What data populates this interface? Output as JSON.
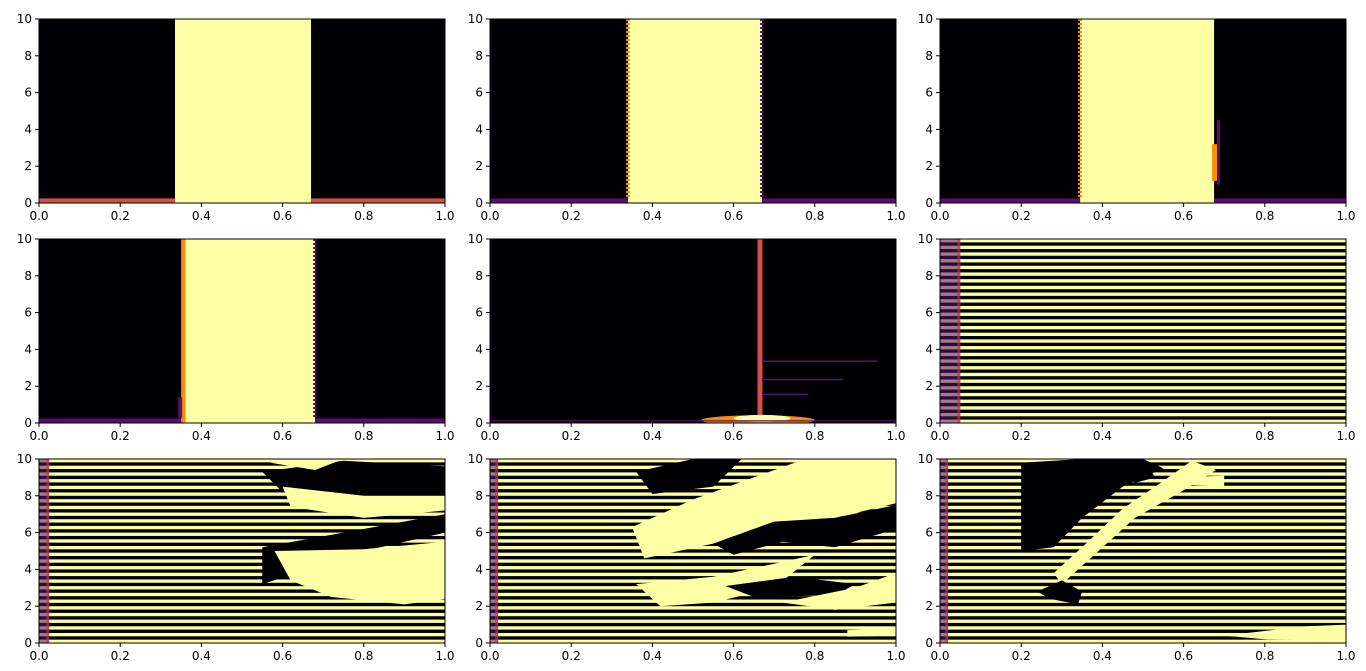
{
  "colors": {
    "background": "#000004",
    "bright": "#fcffa4",
    "orange": "#f98e09",
    "red": "#bc3754",
    "salmon": "#d4504a",
    "purple": "#57106e",
    "dark_purple": "#2a0a4a"
  },
  "chart_data": [
    {
      "type": "heatmap",
      "colormap": "inferno",
      "pattern": "band",
      "band_x": [
        0.335,
        0.67
      ],
      "edge_left": "none",
      "edge_right": "none",
      "bottom_stripe": "salmon",
      "xlim": [
        0,
        1
      ],
      "ylim": [
        0,
        10
      ],
      "xticks": [
        "0.0",
        "0.2",
        "0.4",
        "0.6",
        "0.8",
        "1.0"
      ],
      "yticks": [
        "0",
        "2",
        "4",
        "6",
        "8",
        "10"
      ]
    },
    {
      "type": "heatmap",
      "colormap": "inferno",
      "pattern": "band",
      "band_x": [
        0.34,
        0.67
      ],
      "edge_left": "orange-dash",
      "edge_right": "purple-dash",
      "bottom_stripe": "purple",
      "xlim": [
        0,
        1
      ],
      "ylim": [
        0,
        10
      ],
      "xticks": [
        "0.0",
        "0.2",
        "0.4",
        "0.6",
        "0.8",
        "1.0"
      ],
      "yticks": [
        "0",
        "2",
        "4",
        "6",
        "8",
        "10"
      ]
    },
    {
      "type": "heatmap",
      "colormap": "inferno",
      "pattern": "band",
      "band_x": [
        0.345,
        0.675
      ],
      "edge_left": "orange-dash",
      "edge_right": "orange-glow",
      "bottom_stripe": "purple",
      "xlim": [
        0,
        1
      ],
      "ylim": [
        0,
        10
      ],
      "xticks": [
        "0.0",
        "0.2",
        "0.4",
        "0.6",
        "0.8",
        "1.0"
      ],
      "yticks": [
        "0",
        "2",
        "4",
        "6",
        "8",
        "10"
      ]
    },
    {
      "type": "heatmap",
      "colormap": "inferno",
      "pattern": "band",
      "band_x": [
        0.36,
        0.68
      ],
      "edge_left": "orange-solid",
      "edge_right": "purple-dash",
      "bottom_stripe": "purple",
      "xlim": [
        0,
        1
      ],
      "ylim": [
        0,
        10
      ],
      "xticks": [
        "0.0",
        "0.2",
        "0.4",
        "0.6",
        "0.8",
        "1.0"
      ],
      "yticks": [
        "0",
        "2",
        "4",
        "6",
        "8",
        "10"
      ]
    },
    {
      "type": "heatmap",
      "colormap": "inferno",
      "pattern": "spike",
      "spike_x": 0.665,
      "blob_x": [
        0.52,
        0.8
      ],
      "streak_y": [
        3.4,
        2.4,
        1.6
      ],
      "xlim": [
        0,
        1
      ],
      "ylim": [
        0,
        10
      ],
      "xticks": [
        "0.0",
        "0.2",
        "0.4",
        "0.6",
        "0.8",
        "1.0"
      ],
      "yticks": [
        "0",
        "2",
        "4",
        "6",
        "8",
        "10"
      ]
    },
    {
      "type": "heatmap",
      "colormap": "inferno",
      "pattern": "stripes",
      "left_edge_x": 0.05,
      "stripe_count": 55,
      "xlim": [
        0,
        1
      ],
      "ylim": [
        0,
        10
      ],
      "xticks": [
        "0.0",
        "0.2",
        "0.4",
        "0.6",
        "0.8",
        "1.0"
      ],
      "yticks": [
        "0",
        "2",
        "4",
        "6",
        "8",
        "10"
      ]
    },
    {
      "type": "heatmap",
      "colormap": "inferno",
      "pattern": "stripes-blobs",
      "left_edge_x": 0.025,
      "stripe_count": 55,
      "blobs": [
        {
          "color": "black",
          "pts": [
            [
              0.55,
              9.3
            ],
            [
              0.75,
              9.9
            ],
            [
              1.0,
              9.6
            ],
            [
              1.0,
              7.6
            ],
            [
              0.8,
              7.2
            ],
            [
              0.6,
              8.2
            ]
          ]
        },
        {
          "color": "black",
          "pts": [
            [
              0.55,
              5.2
            ],
            [
              0.75,
              6.0
            ],
            [
              1.0,
              7.0
            ],
            [
              1.0,
              6.0
            ],
            [
              0.8,
              5.0
            ],
            [
              0.55,
              3.2
            ]
          ]
        },
        {
          "color": "bright",
          "pts": [
            [
              0.58,
              5.0
            ],
            [
              0.8,
              5.1
            ],
            [
              1.0,
              5.5
            ],
            [
              1.0,
              2.4
            ],
            [
              0.9,
              2.1
            ],
            [
              0.72,
              2.5
            ],
            [
              0.62,
              3.4
            ]
          ]
        },
        {
          "color": "bright",
          "pts": [
            [
              0.6,
              8.5
            ],
            [
              0.8,
              8.0
            ],
            [
              1.0,
              8.0
            ],
            [
              1.0,
              7.2
            ],
            [
              0.8,
              6.8
            ],
            [
              0.62,
              7.4
            ]
          ]
        },
        {
          "color": "bright",
          "pts": [
            [
              0.57,
              9.8
            ],
            [
              0.65,
              10.0
            ],
            [
              0.75,
              10.0
            ],
            [
              0.68,
              9.4
            ]
          ]
        }
      ],
      "xlim": [
        0,
        1
      ],
      "ylim": [
        0,
        10
      ],
      "xticks": [
        "0.0",
        "0.2",
        "0.4",
        "0.6",
        "0.8",
        "1.0"
      ],
      "yticks": [
        "0",
        "2",
        "4",
        "6",
        "8",
        "10"
      ]
    },
    {
      "type": "heatmap",
      "colormap": "inferno",
      "pattern": "stripes-blobs",
      "left_edge_x": 0.02,
      "stripe_count": 55,
      "blobs": [
        {
          "color": "black",
          "pts": [
            [
              0.36,
              9.3
            ],
            [
              0.5,
              10.0
            ],
            [
              0.62,
              10.0
            ],
            [
              0.55,
              8.5
            ],
            [
              0.4,
              8.1
            ]
          ]
        },
        {
          "color": "bright",
          "pts": [
            [
              0.35,
              6.3
            ],
            [
              0.5,
              7.8
            ],
            [
              0.65,
              9.0
            ],
            [
              0.75,
              9.8
            ],
            [
              0.8,
              10.0
            ],
            [
              1.0,
              10.0
            ],
            [
              1.0,
              7.6
            ],
            [
              0.85,
              6.8
            ],
            [
              0.7,
              6.6
            ],
            [
              0.55,
              5.4
            ],
            [
              0.38,
              4.6
            ]
          ]
        },
        {
          "color": "black",
          "pts": [
            [
              0.55,
              5.4
            ],
            [
              0.7,
              6.6
            ],
            [
              0.85,
              6.8
            ],
            [
              1.0,
              7.5
            ],
            [
              1.0,
              6.2
            ],
            [
              0.85,
              5.2
            ],
            [
              0.72,
              5.5
            ],
            [
              0.6,
              4.8
            ]
          ]
        },
        {
          "color": "bright",
          "pts": [
            [
              0.36,
              3.2
            ],
            [
              0.55,
              3.6
            ],
            [
              0.72,
              4.4
            ],
            [
              0.8,
              4.8
            ],
            [
              0.7,
              3.0
            ],
            [
              0.55,
              2.2
            ],
            [
              0.42,
              2.0
            ]
          ]
        },
        {
          "color": "black",
          "pts": [
            [
              0.58,
              3.1
            ],
            [
              0.75,
              3.6
            ],
            [
              0.9,
              3.2
            ],
            [
              0.85,
              2.6
            ],
            [
              0.65,
              2.5
            ]
          ]
        },
        {
          "color": "bright",
          "pts": [
            [
              0.72,
              2.2
            ],
            [
              0.9,
              3.0
            ],
            [
              1.0,
              3.8
            ],
            [
              1.0,
              2.2
            ],
            [
              0.85,
              1.8
            ]
          ]
        },
        {
          "color": "bright",
          "pts": [
            [
              0.88,
              0.7
            ],
            [
              1.0,
              0.8
            ],
            [
              1.0,
              0.4
            ],
            [
              0.88,
              0.35
            ]
          ]
        }
      ],
      "xlim": [
        0,
        1
      ],
      "ylim": [
        0,
        10
      ],
      "xticks": [
        "0.0",
        "0.2",
        "0.4",
        "0.6",
        "0.8",
        "1.0"
      ],
      "yticks": [
        "0",
        "2",
        "4",
        "6",
        "8",
        "10"
      ]
    },
    {
      "type": "heatmap",
      "colormap": "inferno",
      "pattern": "stripes-blobs",
      "left_edge_x": 0.02,
      "stripe_count": 55,
      "blobs": [
        {
          "color": "black",
          "pts": [
            [
              0.2,
              9.8
            ],
            [
              0.35,
              10.0
            ],
            [
              0.5,
              10.0
            ],
            [
              0.55,
              9.5
            ],
            [
              0.45,
              8.5
            ],
            [
              0.35,
              6.8
            ],
            [
              0.28,
              5.2
            ],
            [
              0.2,
              5.0
            ]
          ]
        },
        {
          "color": "black",
          "pts": [
            [
              0.42,
              10.0
            ],
            [
              0.5,
              10.0
            ],
            [
              0.53,
              9.0
            ],
            [
              0.48,
              8.7
            ]
          ]
        },
        {
          "color": "bright",
          "pts": [
            [
              0.28,
              3.8
            ],
            [
              0.35,
              5.2
            ],
            [
              0.45,
              7.3
            ],
            [
              0.55,
              8.8
            ],
            [
              0.62,
              9.9
            ],
            [
              0.68,
              9.4
            ],
            [
              0.6,
              8.3
            ],
            [
              0.48,
              6.8
            ],
            [
              0.38,
              4.8
            ],
            [
              0.3,
              3.2
            ]
          ]
        },
        {
          "color": "black",
          "pts": [
            [
              0.24,
              2.8
            ],
            [
              0.3,
              3.4
            ],
            [
              0.35,
              2.8
            ],
            [
              0.34,
              2.1
            ],
            [
              0.27,
              2.4
            ]
          ]
        },
        {
          "color": "bright",
          "pts": [
            [
              0.6,
              9.0
            ],
            [
              0.7,
              9.1
            ],
            [
              0.7,
              8.5
            ],
            [
              0.6,
              8.6
            ]
          ]
        },
        {
          "color": "bright",
          "pts": [
            [
              0.7,
              0.4
            ],
            [
              0.9,
              0.9
            ],
            [
              1.0,
              1.0
            ],
            [
              1.0,
              0.1
            ],
            [
              0.8,
              0.2
            ]
          ]
        }
      ],
      "xlim": [
        0,
        1
      ],
      "ylim": [
        0,
        10
      ],
      "xticks": [
        "0.0",
        "0.2",
        "0.4",
        "0.6",
        "0.8",
        "1.0"
      ],
      "yticks": [
        "0",
        "2",
        "4",
        "6",
        "8",
        "10"
      ]
    }
  ]
}
